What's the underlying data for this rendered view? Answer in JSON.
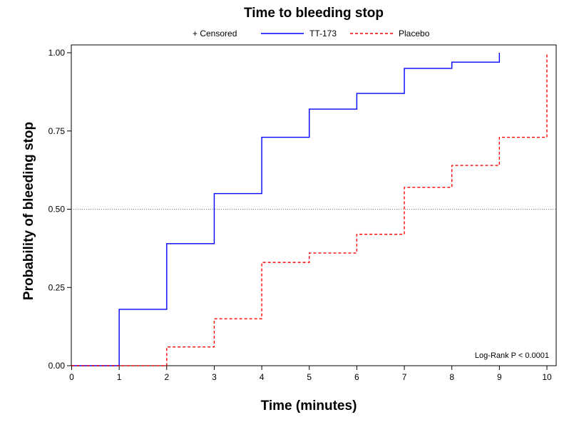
{
  "chart_data": {
    "type": "line",
    "subtype": "kaplan-meier step",
    "title": "Time to bleeding stop",
    "xlabel": "Time (minutes)",
    "ylabel": "Probability of bleeding stop",
    "xlim": [
      0,
      10
    ],
    "ylim": [
      0,
      1
    ],
    "x_ticks": [
      "0",
      "1",
      "2",
      "3",
      "4",
      "5",
      "6",
      "7",
      "8",
      "9",
      "10"
    ],
    "y_ticks": [
      "0.00",
      "0.25",
      "0.50",
      "0.75",
      "1.00"
    ],
    "reference_line": {
      "y": 0.5,
      "style": "dotted",
      "color": "#808080"
    },
    "legend": {
      "position": "top",
      "entries": [
        {
          "label": "+ Censored",
          "marker": "none"
        },
        {
          "label": "TT-173",
          "series": 0
        },
        {
          "label": "Placebo",
          "series": 1
        }
      ]
    },
    "annotation": "Log-Rank  P < 0.0001",
    "series": [
      {
        "name": "TT-173",
        "color": "#0000ff",
        "style": "solid",
        "x": [
          0,
          1,
          2,
          3,
          4,
          5,
          6,
          7,
          8,
          9
        ],
        "y": [
          0,
          0.18,
          0.39,
          0.55,
          0.73,
          0.82,
          0.87,
          0.95,
          0.97,
          1.0
        ],
        "end_x": 9
      },
      {
        "name": "Placebo",
        "color": "#ff0000",
        "style": "dashed",
        "x": [
          0,
          2,
          3,
          4,
          5,
          6,
          7,
          8,
          9,
          10
        ],
        "y": [
          0,
          0.06,
          0.15,
          0.33,
          0.36,
          0.42,
          0.57,
          0.64,
          0.73,
          1.0
        ],
        "end_x": 10
      }
    ]
  }
}
